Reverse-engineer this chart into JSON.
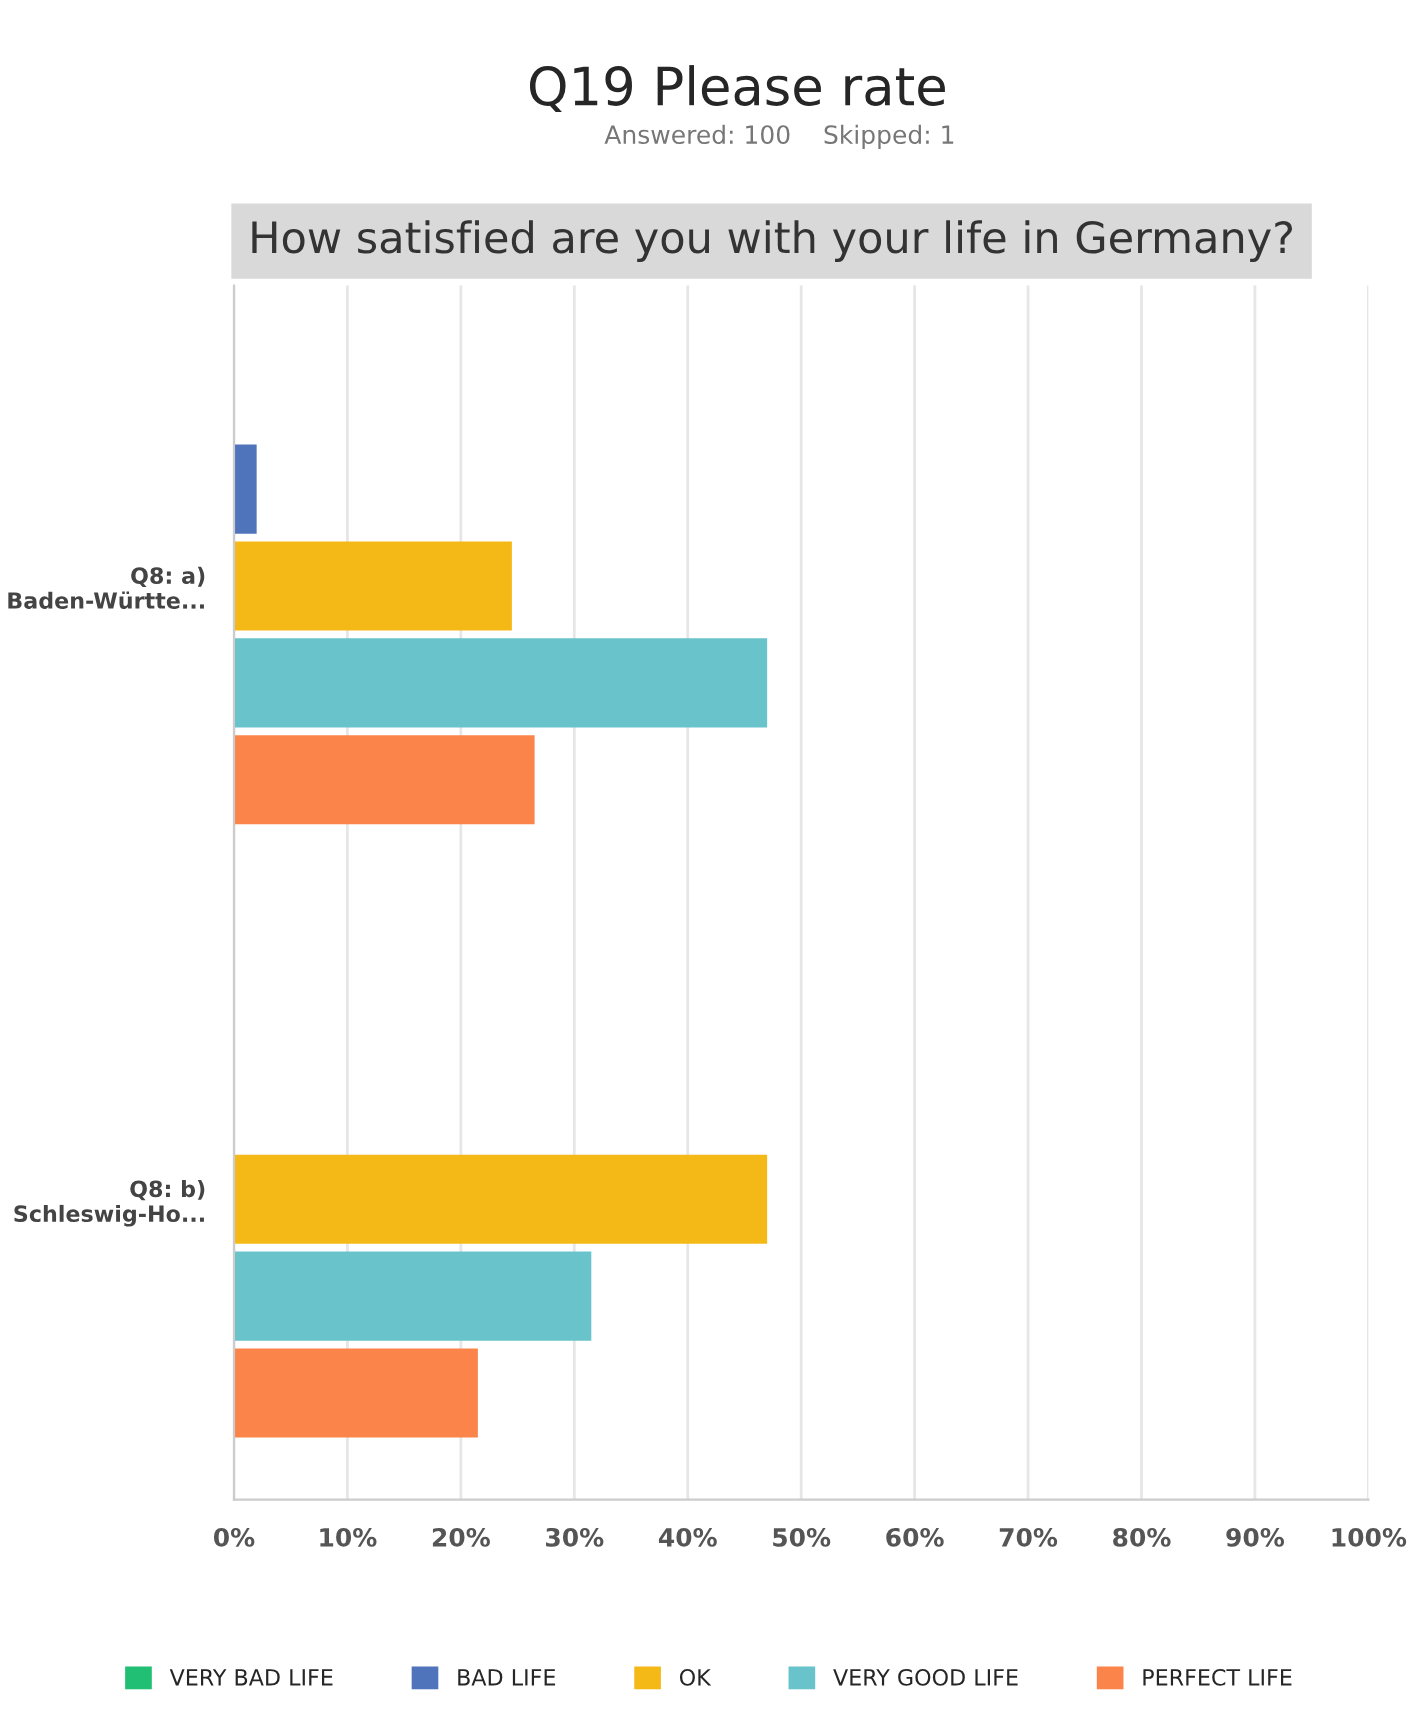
{
  "chart_data": {
    "type": "bar",
    "orientation": "horizontal",
    "title": "Q19 Please rate",
    "subtitle": "How satisfied are you with your life in Germany?",
    "annotations": [
      "Answered: 100    Skipped: 1"
    ],
    "categories": [
      "Q8: a)\nBaden-Württe...",
      "Q8: b)\nSchleswig-Ho..."
    ],
    "series": [
      {
        "name": "VERY BAD LIFE",
        "color": "#21bf73",
        "values": [
          0,
          0
        ]
      },
      {
        "name": "BAD LIFE",
        "color": "#4f74bb",
        "values": [
          2,
          0
        ]
      },
      {
        "name": "OK",
        "color": "#f5b917",
        "values": [
          24.5,
          47
        ]
      },
      {
        "name": "VERY GOOD LIFE",
        "color": "#68c3cb",
        "values": [
          47,
          31.5
        ]
      },
      {
        "name": "PERFECT LIFE",
        "color": "#fb844a",
        "values": [
          26.5,
          21.5
        ]
      }
    ],
    "xlim": [
      0,
      100
    ],
    "xticks": [
      {
        "value": 0,
        "label": "0%"
      },
      {
        "value": 10,
        "label": "10%"
      },
      {
        "value": 20,
        "label": "20%"
      },
      {
        "value": 30,
        "label": "30%"
      },
      {
        "value": 40,
        "label": "40%"
      },
      {
        "value": 50,
        "label": "50%"
      },
      {
        "value": 60,
        "label": "60%"
      },
      {
        "value": 70,
        "label": "70%"
      },
      {
        "value": 80,
        "label": "80%"
      },
      {
        "value": 90,
        "label": "90%"
      },
      {
        "value": 100,
        "label": "100%"
      }
    ],
    "grid": "x",
    "legend": "bottom"
  }
}
